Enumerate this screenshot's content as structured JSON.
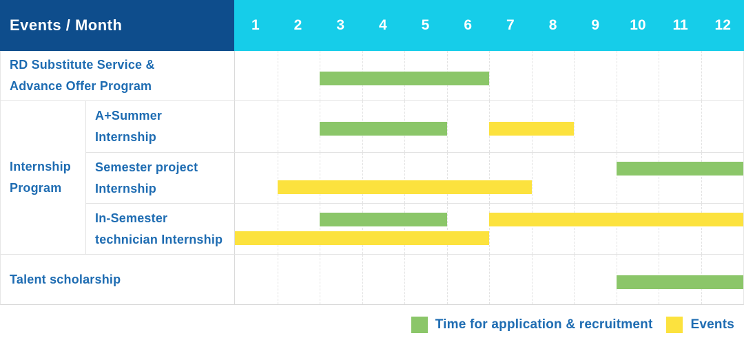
{
  "header": {
    "title": "Events / Month",
    "months": [
      "1",
      "2",
      "3",
      "4",
      "5",
      "6",
      "7",
      "8",
      "9",
      "10",
      "11",
      "12"
    ]
  },
  "colors": {
    "header_bg": "#0E4D8C",
    "months_bg": "#16CDE9",
    "header_text": "#FFFFFF",
    "label_text": "#1E6CB2",
    "green": "#8BC669",
    "yellow": "#FCE23E"
  },
  "rows": [
    {
      "label": "RD Substitute Service &\nAdvance Offer Program",
      "group": "",
      "bars": [
        {
          "color_key": "green",
          "start": 3,
          "end": 6,
          "lane": "single"
        }
      ]
    },
    {
      "label": "A+Summer\nInternship",
      "group": "Internship\nProgram",
      "bars": [
        {
          "color_key": "green",
          "start": 3,
          "end": 5,
          "lane": "single"
        },
        {
          "color_key": "yellow",
          "start": 7,
          "end": 8,
          "lane": "single"
        }
      ]
    },
    {
      "label": "Semester project\nInternship",
      "group": "Internship\nProgram",
      "bars": [
        {
          "color_key": "green",
          "start": 10,
          "end": 12,
          "lane": "top"
        },
        {
          "color_key": "yellow",
          "start": 2,
          "end": 7,
          "lane": "bottom"
        }
      ]
    },
    {
      "label": "In-Semester\ntechnician Internship",
      "group": "Internship\nProgram",
      "bars": [
        {
          "color_key": "green",
          "start": 3,
          "end": 5,
          "lane": "top"
        },
        {
          "color_key": "yellow",
          "start": 7,
          "end": 12,
          "lane": "top"
        },
        {
          "color_key": "yellow",
          "start": 1,
          "end": 6,
          "lane": "bottom"
        }
      ]
    },
    {
      "label": "Talent scholarship",
      "group": "",
      "bars": [
        {
          "color_key": "green",
          "start": 10,
          "end": 12,
          "lane": "single"
        }
      ]
    }
  ],
  "legend": {
    "items": [
      {
        "color_key": "green",
        "label": "Time for application & recruitment"
      },
      {
        "color_key": "yellow",
        "label": "Events"
      }
    ]
  },
  "chart_data": {
    "type": "table",
    "subtype": "gantt",
    "title": "Events / Month",
    "x_axis": {
      "label": "Month",
      "ticks": [
        1,
        2,
        3,
        4,
        5,
        6,
        7,
        8,
        9,
        10,
        11,
        12
      ],
      "range": [
        1,
        12
      ]
    },
    "grid": true,
    "legend_position": "bottom-right",
    "series_meaning": {
      "green": "Time for application & recruitment",
      "yellow": "Events"
    },
    "rows": [
      {
        "event": "RD Substitute Service & Advance Offer Program",
        "group": null,
        "application_recruitment_months": [
          [
            3,
            6
          ]
        ],
        "events_months": []
      },
      {
        "event": "A+Summer Internship",
        "group": "Internship Program",
        "application_recruitment_months": [
          [
            3,
            5
          ]
        ],
        "events_months": [
          [
            7,
            8
          ]
        ]
      },
      {
        "event": "Semester project Internship",
        "group": "Internship Program",
        "application_recruitment_months": [
          [
            10,
            12
          ]
        ],
        "events_months": [
          [
            2,
            7
          ]
        ]
      },
      {
        "event": "In-Semester technician Internship",
        "group": "Internship Program",
        "application_recruitment_months": [
          [
            3,
            5
          ]
        ],
        "events_months": [
          [
            1,
            6
          ],
          [
            7,
            12
          ]
        ]
      },
      {
        "event": "Talent scholarship",
        "group": null,
        "application_recruitment_months": [
          [
            10,
            12
          ]
        ],
        "events_months": []
      }
    ]
  }
}
